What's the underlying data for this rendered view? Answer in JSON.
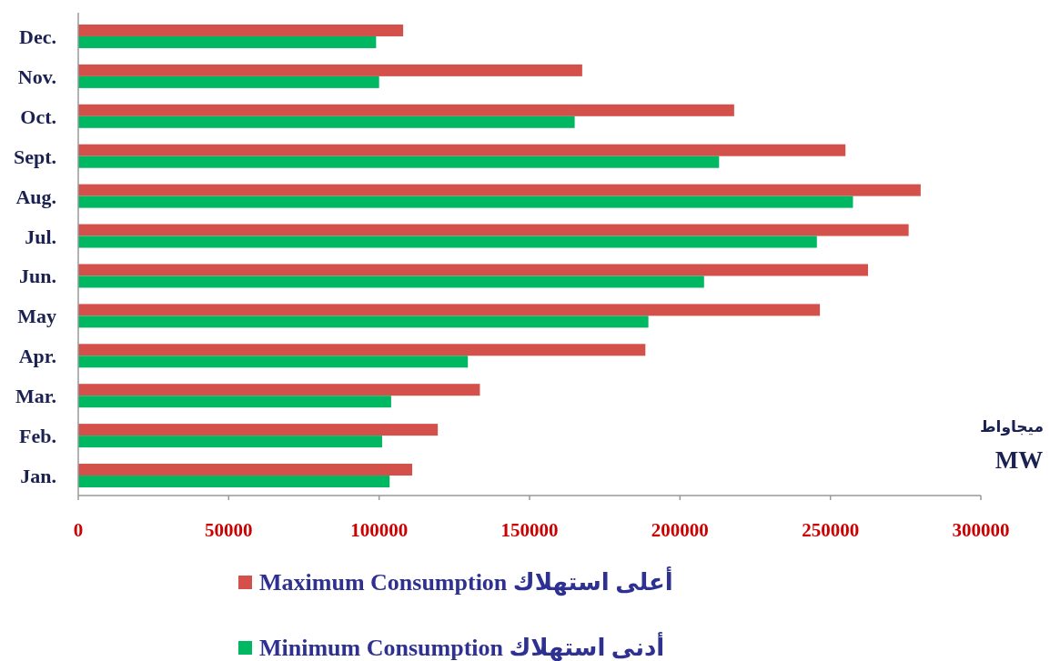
{
  "chart_data": {
    "type": "bar",
    "orientation": "horizontal",
    "categories": [
      "Dec.",
      "Nov.",
      "Oct.",
      "Sept.",
      "Aug.",
      "Jul.",
      "Jun.",
      "May",
      "Apr.",
      "Mar.",
      "Feb.",
      "Jan."
    ],
    "xlabel": "MW",
    "annotations": [
      "ميجاواط"
    ],
    "xlim": [
      0,
      300000
    ],
    "xticks": [
      0,
      50000,
      100000,
      150000,
      200000,
      250000,
      300000
    ],
    "legend": "bottom",
    "grid": false,
    "series": [
      {
        "name": "Maximum Consumption  أعلى استهلاك",
        "color": "#d4504a",
        "values": [
          108000,
          167500,
          218000,
          255000,
          280000,
          276000,
          262500,
          246500,
          188500,
          133500,
          119500,
          111000
        ]
      },
      {
        "name": "Minimum Consumption  أدنى استهلاك",
        "color": "#00b862",
        "values": [
          99000,
          100000,
          165000,
          213000,
          257500,
          245500,
          208000,
          189500,
          129500,
          104000,
          101000,
          103500
        ]
      }
    ]
  }
}
